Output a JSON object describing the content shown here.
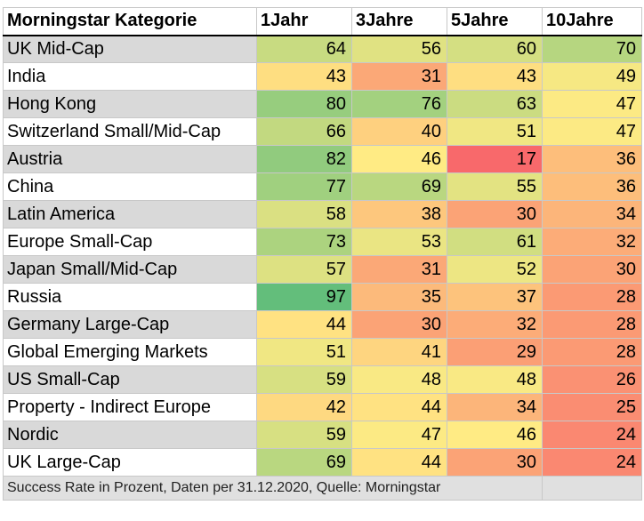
{
  "chart_data": {
    "type": "table",
    "columns": [
      "Morningstar Kategorie",
      "1Jahr",
      "3Jahre",
      "5Jahre",
      "10Jahre"
    ],
    "rows": [
      {
        "name": "UK Mid-Cap",
        "values": [
          64,
          56,
          60,
          70
        ]
      },
      {
        "name": "India",
        "values": [
          43,
          31,
          43,
          49
        ]
      },
      {
        "name": "Hong Kong",
        "values": [
          80,
          76,
          63,
          47
        ]
      },
      {
        "name": "Switzerland Small/Mid-Cap",
        "values": [
          66,
          40,
          51,
          47
        ]
      },
      {
        "name": "Austria",
        "values": [
          82,
          46,
          17,
          36
        ]
      },
      {
        "name": "China",
        "values": [
          77,
          69,
          55,
          36
        ]
      },
      {
        "name": "Latin America",
        "values": [
          58,
          38,
          30,
          34
        ]
      },
      {
        "name": "Europe Small-Cap",
        "values": [
          73,
          53,
          61,
          32
        ]
      },
      {
        "name": "Japan Small/Mid-Cap",
        "values": [
          57,
          31,
          52,
          30
        ]
      },
      {
        "name": "Russia",
        "values": [
          97,
          35,
          37,
          28
        ]
      },
      {
        "name": "Germany Large-Cap",
        "values": [
          44,
          30,
          32,
          28
        ]
      },
      {
        "name": "Global Emerging Markets",
        "values": [
          51,
          41,
          29,
          28
        ]
      },
      {
        "name": "US Small-Cap",
        "values": [
          59,
          48,
          48,
          26
        ]
      },
      {
        "name": "Property - Indirect Europe",
        "values": [
          42,
          44,
          34,
          25
        ]
      },
      {
        "name": "Nordic",
        "values": [
          59,
          47,
          46,
          24
        ]
      },
      {
        "name": "UK Large-Cap",
        "values": [
          69,
          44,
          30,
          24
        ]
      }
    ],
    "footnote": "Success Rate in Prozent, Daten per 31.12.2020, Quelle: Morningstar"
  },
  "colors": {
    "low": "#f8696b",
    "mid": "#ffeb84",
    "high": "#63be7b",
    "row_shade": "#d9d9d9"
  }
}
